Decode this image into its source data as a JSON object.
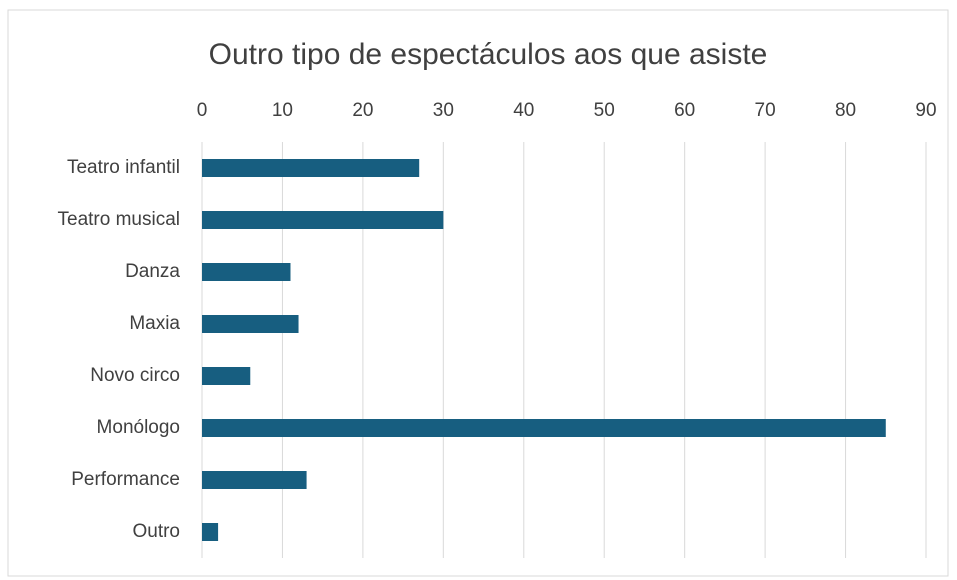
{
  "chart_data": {
    "type": "bar",
    "orientation": "horizontal",
    "title": "Outro tipo de espectáculos aos que asiste",
    "categories": [
      "Teatro infantil",
      "Teatro musical",
      "Danza",
      "Maxia",
      "Novo circo",
      "Monólogo",
      "Performance",
      "Outro"
    ],
    "values": [
      27,
      30,
      11,
      12,
      6,
      85,
      13,
      2
    ],
    "color": "#175e80",
    "xlim": [
      0,
      90
    ],
    "xticks": [
      0,
      10,
      20,
      30,
      40,
      50,
      60,
      70,
      80,
      90
    ],
    "grid": true,
    "x_axis_position": "top"
  }
}
